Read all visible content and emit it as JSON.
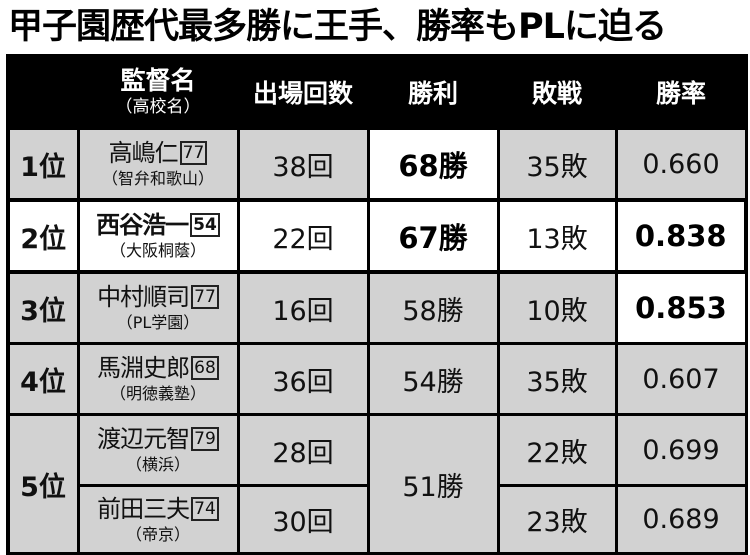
{
  "title": "甲子園歴代最多勝に王手、勝率もPLに迫る",
  "headers": {
    "coach": "監督名",
    "school": "（高校名）",
    "appearances": "出場回数",
    "wins": "勝利",
    "losses": "敗戦",
    "win_pct": "勝率"
  },
  "rows": [
    {
      "rank": "1位",
      "coach": "高嶋仁",
      "age": "77",
      "school": "（智弁和歌山）",
      "appearances": "38回",
      "wins": "68勝",
      "losses": "35敗",
      "win_pct": "0.660"
    },
    {
      "rank": "2位",
      "coach": "西谷浩一",
      "age": "54",
      "school": "（大阪桐蔭）",
      "appearances": "22回",
      "wins": "67勝",
      "losses": "13敗",
      "win_pct": "0.838"
    },
    {
      "rank": "3位",
      "coach": "中村順司",
      "age": "77",
      "school": "（PL学園）",
      "appearances": "16回",
      "wins": "58勝",
      "losses": "10敗",
      "win_pct": "0.853"
    },
    {
      "rank": "4位",
      "coach": "馬淵史郎",
      "age": "68",
      "school": "（明徳義塾）",
      "appearances": "36回",
      "wins": "54勝",
      "losses": "35敗",
      "win_pct": "0.607"
    },
    {
      "rank": "5位",
      "coach": "渡辺元智",
      "age": "79",
      "school": "（横浜）",
      "appearances": "28回",
      "wins": "51勝",
      "losses": "22敗",
      "win_pct": "0.699"
    },
    {
      "rank": "",
      "coach": "前田三夫",
      "age": "74",
      "school": "（帝京）",
      "appearances": "30回",
      "wins": "",
      "losses": "23敗",
      "win_pct": "0.689"
    }
  ]
}
